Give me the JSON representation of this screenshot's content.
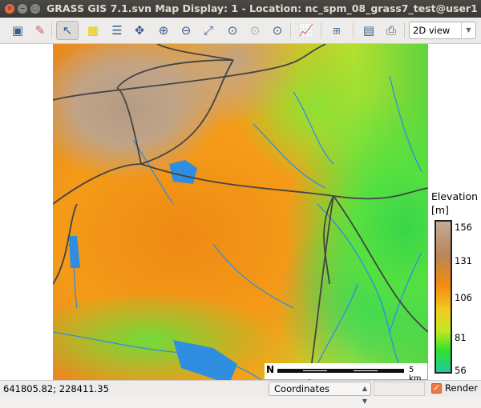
{
  "window": {
    "title": "GRASS GIS 7.1.svn Map Display: 1  - Location: nc_spm_08_grass7_test@user1"
  },
  "toolbar": {
    "tools": [
      "display-map-icon",
      "erase-icon",
      "pointer-icon",
      "select-icon",
      "query-icon",
      "pan-icon",
      "zoom-in-icon",
      "zoom-out-icon",
      "zoom-extent-icon",
      "zoom-back-icon",
      "zoom-region-icon",
      "zoom-menu-icon",
      "analyze-icon",
      "decoration-icon",
      "save-image-icon",
      "print-icon"
    ],
    "view_select": "2D view"
  },
  "legend": {
    "title": "Elevation [m]",
    "ticks": [
      "156",
      "131",
      "106",
      "81",
      "56"
    ],
    "colors": [
      "#c4aa94",
      "#b8865a",
      "#f28a10",
      "#f2c820",
      "#c8e820",
      "#30e030",
      "#1fc8a0"
    ]
  },
  "scalebar": {
    "label": "5 km",
    "north": "N"
  },
  "statusbar": {
    "coordinates": "641805.82; 228411.35",
    "mode": "Coordinates",
    "render_label": "Render",
    "render_checked": true
  }
}
